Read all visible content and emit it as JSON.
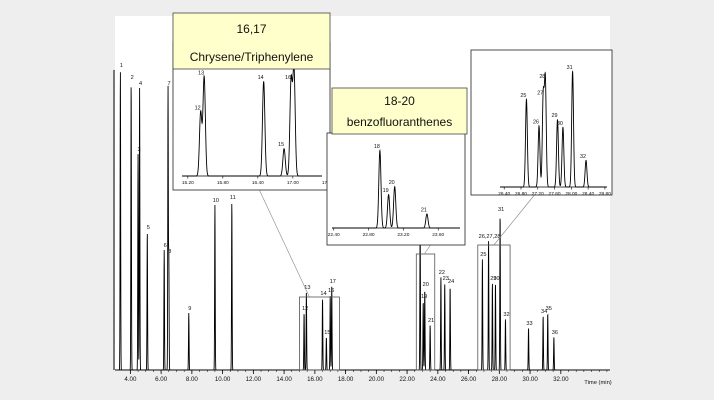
{
  "chart_data": {
    "type": "line",
    "xlabel": "Time (min)",
    "main": {
      "xlim": [
        3,
        35.2
      ],
      "ticks": [
        "4.00",
        "6.00",
        "8.00",
        "10.00",
        "12.00",
        "14.00",
        "16.00",
        "18.00",
        "20.00",
        "22.00",
        "24.00",
        "26.00",
        "28.00",
        "30.00",
        "32.00"
      ],
      "tick_values": [
        4,
        6,
        8,
        10,
        12,
        14,
        16,
        18,
        20,
        22,
        24,
        26,
        28,
        30,
        32
      ],
      "peaks": [
        {
          "label": "1",
          "x": 3.35,
          "h": 1.0
        },
        {
          "label": "2",
          "x": 4.05,
          "h": 0.96
        },
        {
          "label": "3",
          "x": 4.5,
          "h": 0.72
        },
        {
          "label": "4",
          "x": 4.6,
          "h": 0.94
        },
        {
          "label": "5",
          "x": 5.1,
          "h": 0.46
        },
        {
          "label": "6",
          "x": 6.2,
          "h": 0.4
        },
        {
          "label": "7",
          "x": 6.45,
          "h": 0.94
        },
        {
          "label": "8",
          "x": 6.5,
          "h": 0.38
        },
        {
          "label": "9",
          "x": 7.8,
          "h": 0.19
        },
        {
          "label": "10",
          "x": 9.5,
          "h": 0.55
        },
        {
          "label": "11",
          "x": 10.6,
          "h": 0.56
        },
        {
          "label": "12",
          "x": 15.3,
          "h": 0.19
        },
        {
          "label": "13",
          "x": 15.45,
          "h": 0.26
        },
        {
          "label": "14",
          "x": 16.5,
          "h": 0.24
        },
        {
          "label": "15",
          "x": 16.75,
          "h": 0.11
        },
        {
          "label": "16",
          "x": 17.0,
          "h": 0.25
        },
        {
          "label": "17",
          "x": 17.1,
          "h": 0.28
        },
        {
          "label": "18",
          "x": 22.85,
          "h": 0.49
        },
        {
          "label": "19",
          "x": 23.05,
          "h": 0.23
        },
        {
          "label": "20",
          "x": 23.15,
          "h": 0.27
        },
        {
          "label": "21",
          "x": 23.5,
          "h": 0.15
        },
        {
          "label": "22",
          "x": 24.2,
          "h": 0.31
        },
        {
          "label": "23",
          "x": 24.45,
          "h": 0.29
        },
        {
          "label": "24",
          "x": 24.8,
          "h": 0.28
        },
        {
          "label": "25",
          "x": 26.9,
          "h": 0.37
        },
        {
          "label": "26,27,28",
          "x": 27.3,
          "h": 0.43
        },
        {
          "label": "29",
          "x": 27.55,
          "h": 0.29
        },
        {
          "label": "30",
          "x": 27.75,
          "h": 0.29
        },
        {
          "label": "31",
          "x": 28.05,
          "h": 0.52
        },
        {
          "label": "32",
          "x": 28.4,
          "h": 0.17
        },
        {
          "label": "33",
          "x": 29.9,
          "h": 0.14
        },
        {
          "label": "34",
          "x": 30.85,
          "h": 0.18
        },
        {
          "label": "35",
          "x": 31.15,
          "h": 0.19
        },
        {
          "label": "36",
          "x": 31.55,
          "h": 0.11
        }
      ]
    },
    "insets": [
      {
        "id": "inset-chrysene",
        "title": "16,17",
        "subtitle": "Chrysene/Triphenylene",
        "xlim": [
          15.1,
          17.5
        ],
        "ticks": [
          "15.20",
          "15.80",
          "16.40",
          "17.00",
          "17.60"
        ],
        "tick_values": [
          15.2,
          15.8,
          16.4,
          17.0,
          17.6
        ],
        "peaks": [
          {
            "label": "12",
            "x": 15.42,
            "h": 0.56
          },
          {
            "label": "13",
            "x": 15.48,
            "h": 0.87
          },
          {
            "label": "14",
            "x": 16.5,
            "h": 0.83
          },
          {
            "label": "15",
            "x": 16.85,
            "h": 0.24
          },
          {
            "label": "16",
            "x": 16.97,
            "h": 0.83
          },
          {
            "label": "17",
            "x": 17.02,
            "h": 0.93
          }
        ]
      },
      {
        "id": "inset-benzofluoranthenes",
        "title": "18-20",
        "subtitle": "benzofluoranthenes",
        "xlim": [
          22.38,
          23.85
        ],
        "ticks": [
          "22.40",
          "22.80",
          "23.20",
          "23.60"
        ],
        "tick_values": [
          22.4,
          22.8,
          23.2,
          23.6
        ],
        "peaks": [
          {
            "label": "18",
            "x": 22.93,
            "h": 0.88
          },
          {
            "label": "19",
            "x": 23.03,
            "h": 0.38
          },
          {
            "label": "20",
            "x": 23.1,
            "h": 0.47
          },
          {
            "label": "21",
            "x": 23.47,
            "h": 0.16
          }
        ]
      },
      {
        "id": "inset-late",
        "title": "",
        "subtitle": "",
        "xlim": [
          26.3,
          28.85
        ],
        "ticks": [
          "26.40",
          "26.80",
          "27.20",
          "27.60",
          "28.00",
          "28.40",
          "28.80"
        ],
        "tick_values": [
          26.4,
          26.8,
          27.2,
          27.6,
          28.0,
          28.4,
          28.8
        ],
        "peaks": [
          {
            "label": "25",
            "x": 26.93,
            "h": 0.69
          },
          {
            "label": "26",
            "x": 27.23,
            "h": 0.48
          },
          {
            "label": "27",
            "x": 27.33,
            "h": 0.71
          },
          {
            "label": "28",
            "x": 27.38,
            "h": 0.84
          },
          {
            "label": "29",
            "x": 27.67,
            "h": 0.53
          },
          {
            "label": "30",
            "x": 27.8,
            "h": 0.47
          },
          {
            "label": "31",
            "x": 28.03,
            "h": 0.91
          },
          {
            "label": "32",
            "x": 28.35,
            "h": 0.21
          }
        ]
      }
    ]
  }
}
